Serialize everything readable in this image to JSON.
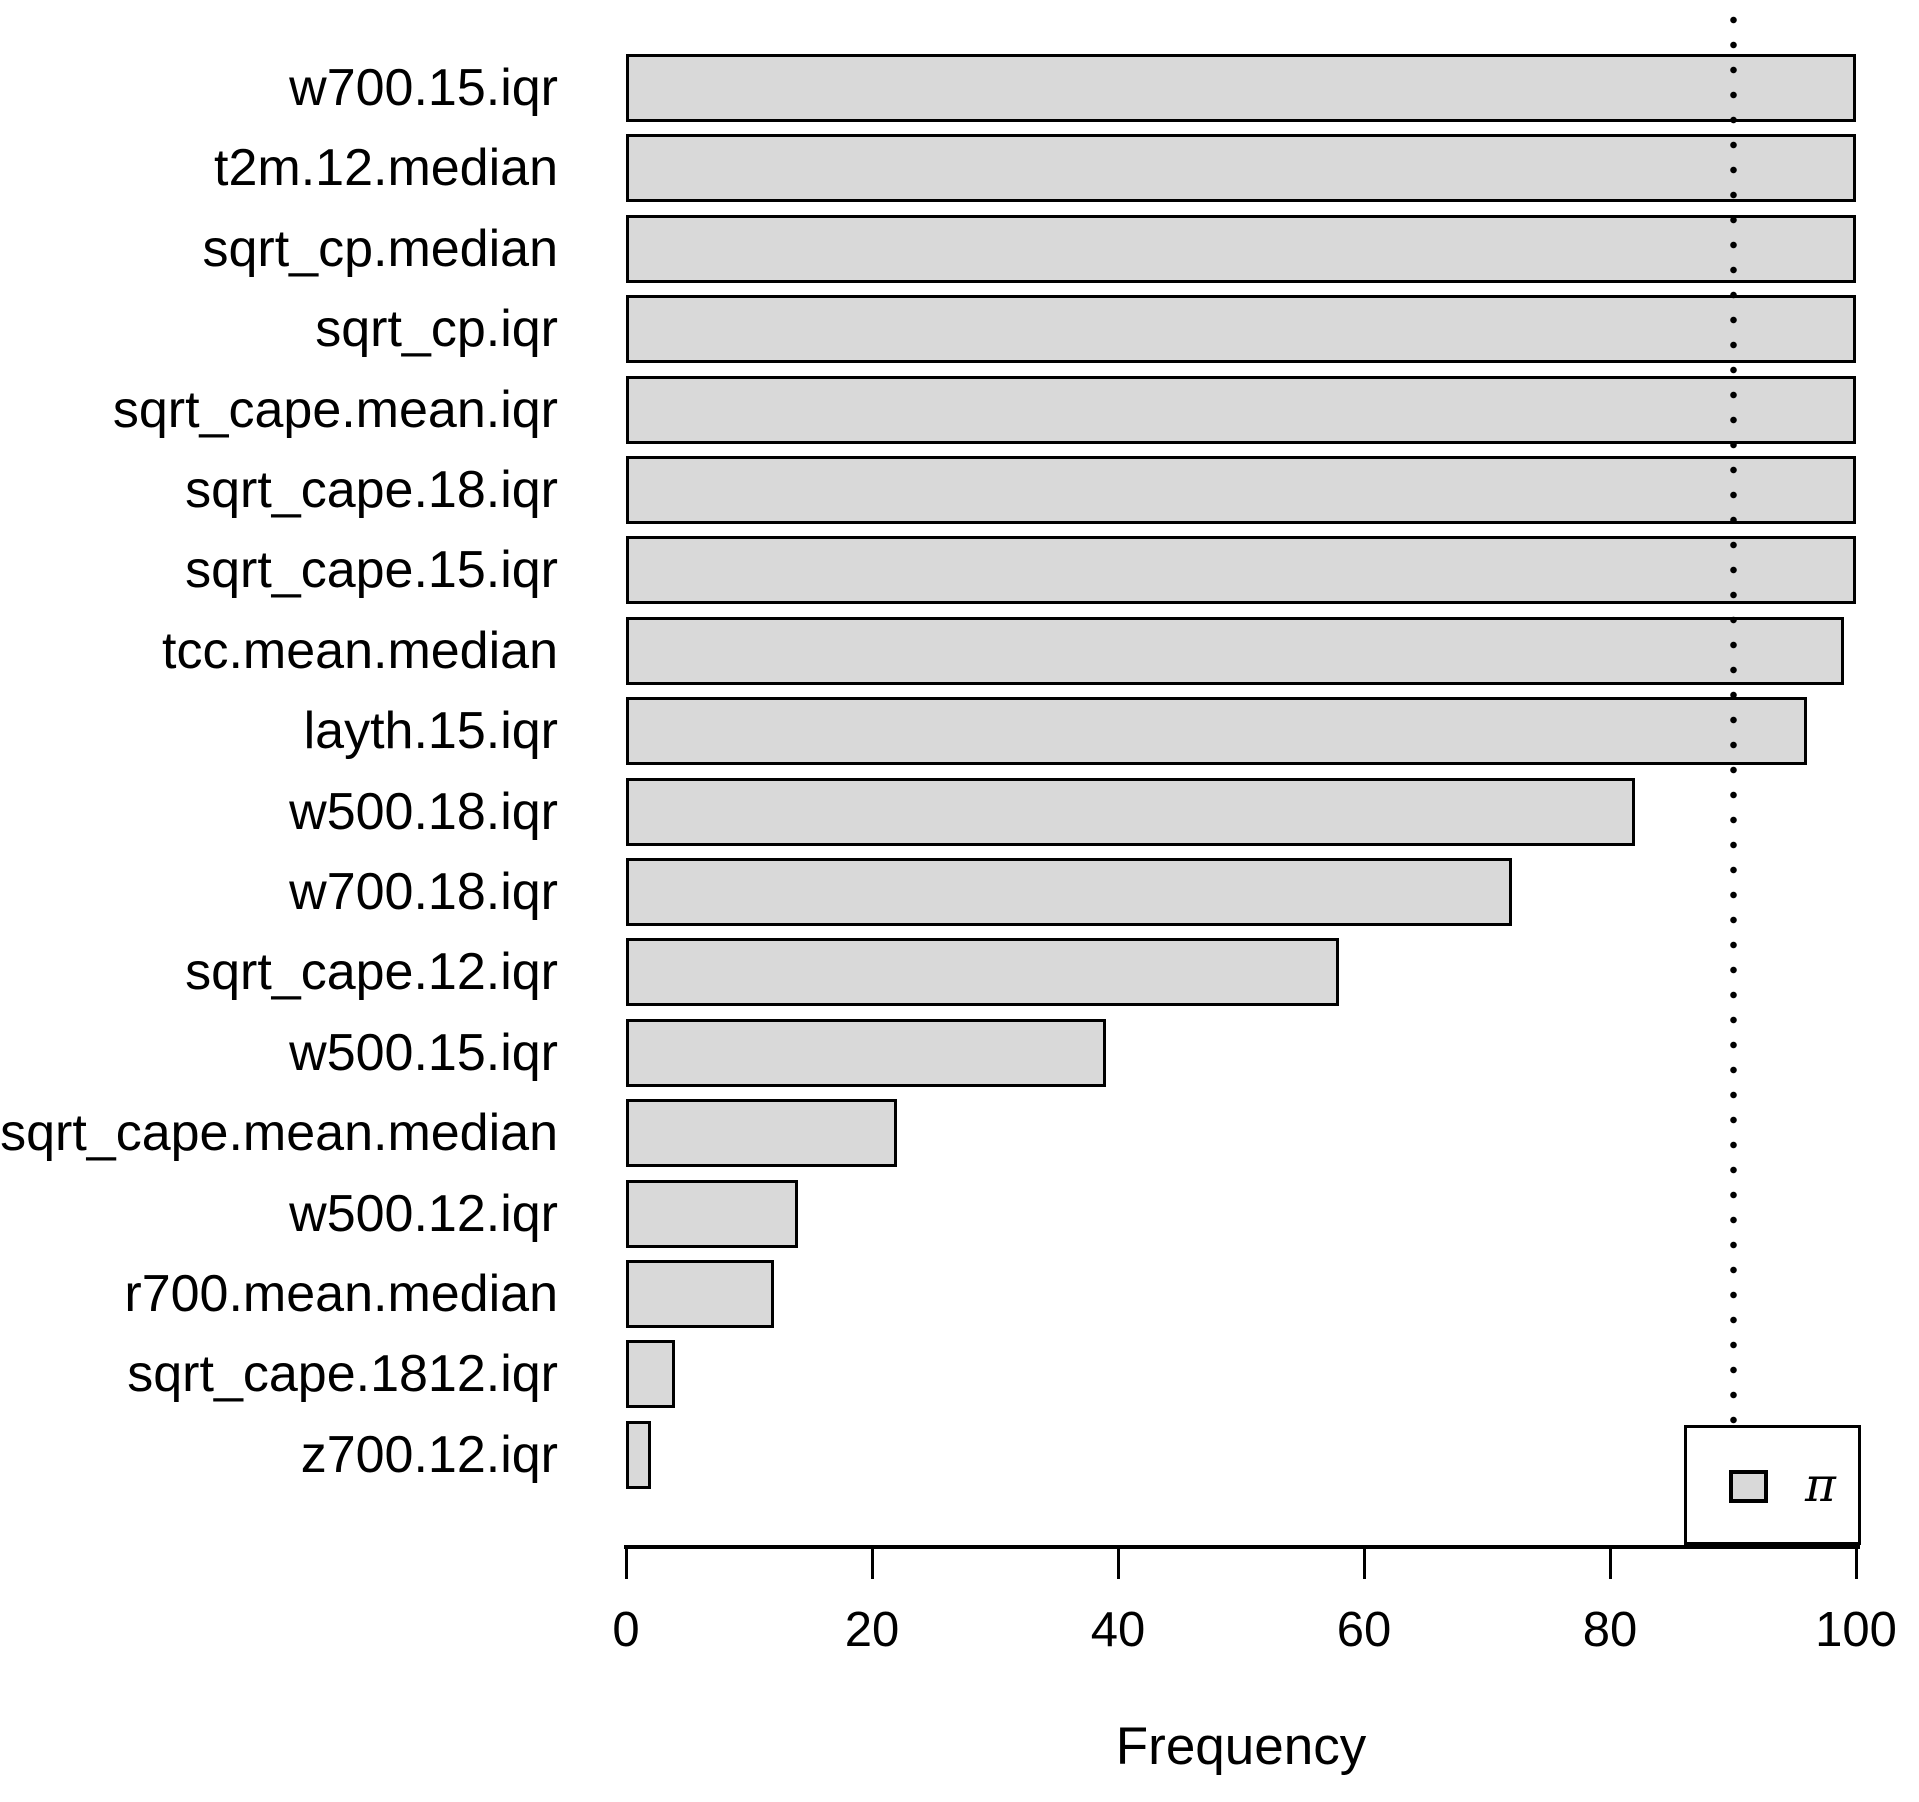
{
  "chart_data": {
    "type": "bar",
    "orientation": "horizontal",
    "title": "",
    "xlabel": "Frequency",
    "ylabel": "",
    "categories": [
      "w700.15.iqr",
      "t2m.12.median",
      "sqrt_cp.median",
      "sqrt_cp.iqr",
      "sqrt_cape.mean.iqr",
      "sqrt_cape.18.iqr",
      "sqrt_cape.15.iqr",
      "tcc.mean.median",
      "layth.15.iqr",
      "w500.18.iqr",
      "w700.18.iqr",
      "sqrt_cape.12.iqr",
      "w500.15.iqr",
      "sqrt_cape.mean.median",
      "w500.12.iqr",
      "r700.mean.median",
      "sqrt_cape.1812.iqr",
      "z700.12.iqr"
    ],
    "values": [
      100,
      100,
      100,
      100,
      100,
      100,
      100,
      99,
      96,
      82,
      72,
      58,
      39,
      22,
      14,
      12,
      4,
      2
    ],
    "xlim": [
      0,
      100
    ],
    "x_ticks": [
      "0",
      "20",
      "40",
      "60",
      "80",
      "100"
    ],
    "x_tick_values": [
      0,
      20,
      40,
      60,
      80,
      100
    ],
    "grid": false,
    "threshold_line": {
      "value": 90,
      "style": "dotted",
      "color": "#000000"
    },
    "legend": {
      "label": "π",
      "position": "bottomright"
    },
    "bar_fill": "#d9d9d9",
    "bar_border": "#000000"
  }
}
